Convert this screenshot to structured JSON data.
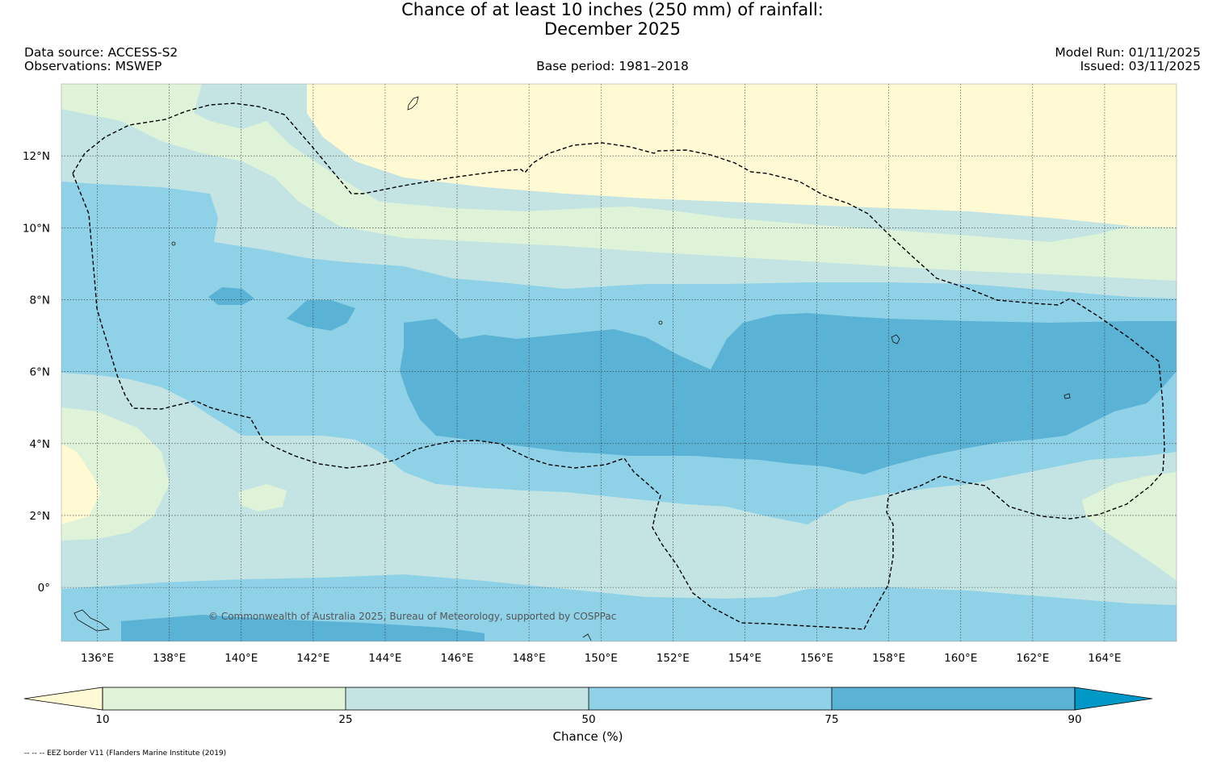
{
  "title": {
    "line1": "Chance of at least 10 inches (250  mm) of rainfall:",
    "line2": "December 2025"
  },
  "meta": {
    "data_source": "Data source: ACCESS-S2",
    "observations": "Observations: MSWEP",
    "base_period": "Base period: 1981–2018",
    "model_run": "Model Run: 01/11/2025",
    "issued": "Issued: 03/11/2025"
  },
  "axes": {
    "lat_labels": [
      "12°N",
      "10°N",
      "8°N",
      "6°N",
      "4°N",
      "2°N",
      "0°"
    ],
    "lat_values": [
      12,
      10,
      8,
      6,
      4,
      2,
      0
    ],
    "lon_labels": [
      "136°E",
      "138°E",
      "140°E",
      "142°E",
      "144°E",
      "146°E",
      "148°E",
      "150°E",
      "152°E",
      "154°E",
      "156°E",
      "158°E",
      "160°E",
      "162°E",
      "164°E"
    ],
    "lon_values": [
      136,
      138,
      140,
      142,
      144,
      146,
      148,
      150,
      152,
      154,
      156,
      158,
      160,
      162,
      164
    ],
    "lon_range": [
      135,
      166
    ],
    "lat_range": [
      -1.5,
      14
    ]
  },
  "copyright": "© Commonwealth of Australia 2025, Bureau of Meteorology, supported by COSPPac",
  "colorbar": {
    "ticks": [
      "10",
      "25",
      "50",
      "75",
      "90"
    ],
    "label": "Chance (%)",
    "colors": [
      "#fff9d4",
      "#dff3d8",
      "#c3e4e3",
      "#8fd2e8",
      "#5ab2d4",
      "#0099c7"
    ]
  },
  "footer": "-- -- -- EEZ border V11 (Flanders Marine Institute (2019)",
  "colors": {
    "lt10": "#fff9d4",
    "c10_25": "#dff3d8",
    "c25_50": "#c3e4e3",
    "c50_75": "#8fd2e8",
    "c75_90": "#5ab2d4",
    "gt90": "#0099c7"
  }
}
